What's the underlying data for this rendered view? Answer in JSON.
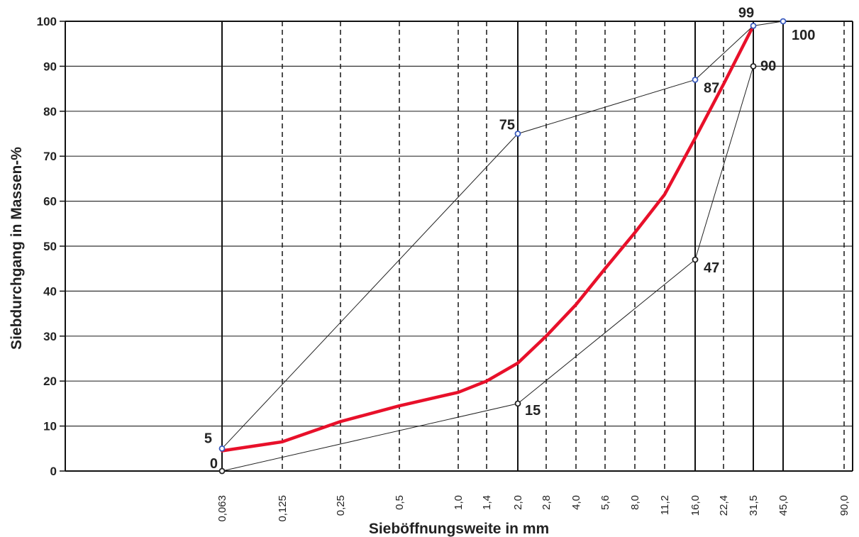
{
  "chart_data": {
    "type": "line",
    "xlabel": "Sieböffnungsweite in mm",
    "ylabel": "Siebdurchgang in Massen-%",
    "ylim": [
      0,
      100
    ],
    "yticks": [
      "0",
      "10",
      "20",
      "30",
      "40",
      "50",
      "60",
      "70",
      "80",
      "90",
      "100"
    ],
    "x_scale": "categorical sieve sizes (approx. logarithmic)",
    "categories": [
      "0,063",
      "0,125",
      "0,25",
      "0,5",
      "1,0",
      "1,4",
      "2,0",
      "2,8",
      "4,0",
      "5,6",
      "8,0",
      "11,2",
      "16,0",
      "22,4",
      "31,5",
      "45,0",
      "90,0"
    ],
    "grid": {
      "horizontal_every": 10,
      "vertical_solid_at": [
        "0,063",
        "2,0",
        "16,0",
        "31,5",
        "45,0"
      ],
      "vertical_dashed_at": [
        "0,125",
        "0,25",
        "0,5",
        "1,0",
        "1,4",
        "2,8",
        "4,0",
        "5,6",
        "8,0",
        "11,2",
        "22,4",
        "90,0"
      ]
    },
    "series": [
      {
        "role": "grading curve",
        "color": "#e8102a",
        "x": [
          "0,063",
          "0,125",
          "0,25",
          "0,5",
          "1,0",
          "1,4",
          "2,0",
          "2,8",
          "4,0",
          "5,6",
          "8,0",
          "11,2",
          "16,0",
          "22,4",
          "31,5"
        ],
        "values": [
          4.5,
          6.5,
          11,
          14.5,
          17.5,
          20,
          24,
          30,
          37,
          45,
          53,
          61.5,
          74,
          86,
          99
        ]
      },
      {
        "role": "upper limit",
        "color": "#222222",
        "marker_color": "#3a5bbf",
        "x": [
          "0,063",
          "2,0",
          "16,0",
          "31,5",
          "45,0"
        ],
        "values": [
          5,
          75,
          87,
          99,
          100
        ]
      },
      {
        "role": "lower limit",
        "color": "#222222",
        "marker_color": "#222222",
        "x": [
          "0,063",
          "2,0",
          "16,0",
          "31,5"
        ],
        "values": [
          0,
          15,
          47,
          90
        ]
      }
    ],
    "annotations": [
      {
        "text": "5",
        "x": "0,063",
        "y": 5
      },
      {
        "text": "0",
        "x": "0,063",
        "y": 0
      },
      {
        "text": "75",
        "x": "2,0",
        "y": 75
      },
      {
        "text": "15",
        "x": "2,0",
        "y": 15
      },
      {
        "text": "87",
        "x": "16,0",
        "y": 87
      },
      {
        "text": "47",
        "x": "16,0",
        "y": 47
      },
      {
        "text": "90",
        "x": "31,5",
        "y": 90
      },
      {
        "text": "99",
        "x": "31,5",
        "y": 99
      },
      {
        "text": "100",
        "x": "45,0",
        "y": 100
      }
    ]
  }
}
